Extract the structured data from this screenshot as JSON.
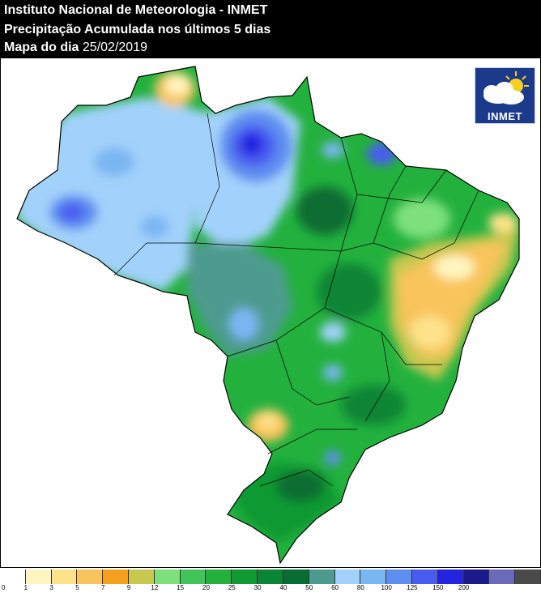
{
  "header": {
    "line1": "Instituto Nacional de Meteorologia - INMET",
    "line2": "Precipitação Acumulada nos últimos 5 dias",
    "line3_label": "Mapa do dia",
    "line3_date": "25/02/2019"
  },
  "logo": {
    "text": "INMET",
    "icon": "sun-cloud-icon"
  },
  "legend": {
    "colors": [
      "#ffffff",
      "#fff5c0",
      "#fde28a",
      "#f9c45c",
      "#f59f1e",
      "#c6c850",
      "#7de07d",
      "#41c55a",
      "#23b13e",
      "#119a33",
      "#0a8536",
      "#086d32",
      "#4d9b8f",
      "#a2d2fb",
      "#7ab6f2",
      "#5e8ef0",
      "#4a5cf0",
      "#2424e0",
      "#1a1a8a",
      "#6a6ab8",
      "#4a4a4a"
    ],
    "ticks": [
      "0",
      "1",
      "3",
      "5",
      "7",
      "9",
      "12",
      "15",
      "20",
      "25",
      "30",
      "40",
      "50",
      "60",
      "80",
      "100",
      "125",
      "150",
      "200"
    ]
  }
}
